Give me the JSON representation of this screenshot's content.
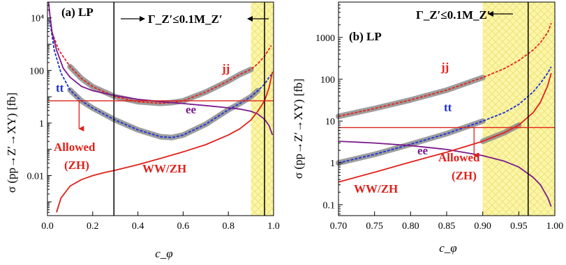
{
  "colors": {
    "jj": "#e8211b",
    "tt": "#1a2fd6",
    "ee": "#7b1a8c",
    "wwzh": "#e0201a",
    "limit": "#e0201a",
    "exclusion_fill": "#fbf6a8",
    "exclusion_hatch": "#efe27a",
    "highlight": "#8c8c8c",
    "axis": "#000000"
  },
  "chart_data": [
    {
      "type": "line",
      "panel_label": "(a) LP",
      "xlabel": "c_φ",
      "ylabel": "σ (pp→Z′→XY) [fb]",
      "xlim": [
        0.0,
        1.0
      ],
      "ylim": [
        0.0003,
        40000
      ],
      "yscale": "log",
      "x_ticks": [
        0.0,
        0.2,
        0.4,
        0.6,
        0.8,
        1.0
      ],
      "x_tick_labels": [
        "0.0",
        "0.2",
        "0.4",
        "0.6",
        "0.8",
        "1.0"
      ],
      "y_ticks": [
        0.01,
        1,
        100,
        10000
      ],
      "y_tick_labels": [
        "0.01",
        "1",
        "100",
        "10⁴"
      ],
      "exclusion_band": [
        0.9,
        1.0
      ],
      "vertical_lines": [
        0.294,
        0.96
      ],
      "horizontal_limit": 7,
      "width_constraint_label": "Γ_Z′≤0.1M_Z′",
      "allowed_label_line1": "Allowed",
      "allowed_label_line2": "(ZH)",
      "series": [
        {
          "name": "jj",
          "dashed": true,
          "x": [
            0.02,
            0.05,
            0.1,
            0.15,
            0.2,
            0.3,
            0.4,
            0.5,
            0.55,
            0.6,
            0.7,
            0.8,
            0.85,
            0.9,
            0.93,
            0.96,
            0.98,
            0.99
          ],
          "y": [
            2800,
            600,
            140,
            50,
            24,
            10,
            6.5,
            5.6,
            6,
            7,
            15,
            40,
            70,
            110,
            180,
            350,
            650,
            900
          ],
          "highlight": [
            0.1,
            0.9
          ]
        },
        {
          "name": "tt",
          "dashed": true,
          "x": [
            0.01,
            0.03,
            0.06,
            0.1,
            0.15,
            0.2,
            0.3,
            0.4,
            0.5,
            0.55,
            0.6,
            0.7,
            0.8,
            0.85,
            0.9,
            0.93,
            0.96,
            0.98,
            0.99
          ],
          "y": [
            8000,
            600,
            80,
            18,
            7,
            3.7,
            1.3,
            0.55,
            0.3,
            0.28,
            0.35,
            0.9,
            3.2,
            5.5,
            10,
            17,
            30,
            55,
            70
          ],
          "highlight": [
            0.1,
            0.95
          ]
        },
        {
          "name": "ee",
          "dashed": false,
          "x": [
            0.005,
            0.01,
            0.02,
            0.04,
            0.07,
            0.1,
            0.15,
            0.2,
            0.3,
            0.4,
            0.5,
            0.6,
            0.7,
            0.8,
            0.85,
            0.9,
            0.93,
            0.96,
            0.98,
            0.995
          ],
          "y": [
            40000,
            15000,
            3000,
            600,
            120,
            55,
            25,
            17,
            11,
            8,
            6.5,
            5.5,
            4.6,
            3.8,
            3.4,
            2.8,
            2.2,
            1.4,
            0.8,
            0.35
          ]
        },
        {
          "name": "WW/ZH",
          "dashed": false,
          "x": [
            0.04,
            0.06,
            0.1,
            0.15,
            0.2,
            0.25,
            0.3,
            0.4,
            0.5,
            0.6,
            0.7,
            0.8,
            0.85,
            0.9,
            0.93,
            0.96,
            0.98,
            0.995
          ],
          "y": [
            0.0004,
            0.0014,
            0.004,
            0.007,
            0.01,
            0.013,
            0.016,
            0.026,
            0.045,
            0.08,
            0.15,
            0.35,
            0.6,
            1.3,
            2.8,
            7,
            22,
            90
          ]
        }
      ]
    },
    {
      "type": "line",
      "panel_label": "(b) LP",
      "xlabel": "c_φ",
      "ylabel": "σ (pp→Z′→XY) [fb]",
      "xlim": [
        0.7,
        1.0
      ],
      "ylim": [
        0.055,
        7000
      ],
      "yscale": "log",
      "x_ticks": [
        0.7,
        0.75,
        0.8,
        0.85,
        0.9,
        0.95,
        1.0
      ],
      "x_tick_labels": [
        "0.70",
        "0.75",
        "0.80",
        "0.85",
        "0.90",
        "0.95",
        "1.00"
      ],
      "y_ticks": [
        0.1,
        1,
        10,
        100,
        1000
      ],
      "y_tick_labels": [
        "0.1",
        "1",
        "10",
        "100",
        "1000"
      ],
      "exclusion_band": [
        0.9,
        1.0
      ],
      "vertical_lines": [
        0.963
      ],
      "horizontal_limit": 7,
      "width_constraint_label": "Γ_Z′≤0.1M_Z′",
      "allowed_label_line1": "Allowed",
      "allowed_label_line2": "(ZH)",
      "series": [
        {
          "name": "jj",
          "dashed": true,
          "x": [
            0.7,
            0.75,
            0.8,
            0.85,
            0.9,
            0.93,
            0.95,
            0.97,
            0.98,
            0.99,
            0.995
          ],
          "y": [
            13,
            20,
            32,
            55,
            110,
            180,
            280,
            500,
            750,
            1300,
            2200
          ],
          "highlight": [
            0.7,
            0.905
          ]
        },
        {
          "name": "tt",
          "dashed": true,
          "x": [
            0.7,
            0.75,
            0.8,
            0.85,
            0.9,
            0.93,
            0.95,
            0.97,
            0.98,
            0.99,
            0.995
          ],
          "y": [
            1,
            1.6,
            2.8,
            5,
            10,
            16,
            25,
            50,
            80,
            140,
            200
          ],
          "highlight": [
            0.7,
            0.92
          ]
        },
        {
          "name": "ee",
          "dashed": false,
          "x": [
            0.7,
            0.75,
            0.8,
            0.85,
            0.9,
            0.93,
            0.95,
            0.97,
            0.98,
            0.99,
            0.995
          ],
          "y": [
            3.3,
            3.0,
            2.6,
            2.1,
            1.5,
            1.1,
            0.8,
            0.45,
            0.3,
            0.15,
            0.09
          ]
        },
        {
          "name": "WW/ZH",
          "dashed": false,
          "x": [
            0.7,
            0.75,
            0.8,
            0.85,
            0.9,
            0.93,
            0.95,
            0.97,
            0.98,
            0.99,
            0.995
          ],
          "y": [
            0.35,
            0.6,
            1.05,
            1.8,
            3.3,
            5.3,
            8,
            16,
            28,
            70,
            140
          ],
          "highlight": [
            0.9,
            0.955
          ]
        }
      ]
    }
  ]
}
